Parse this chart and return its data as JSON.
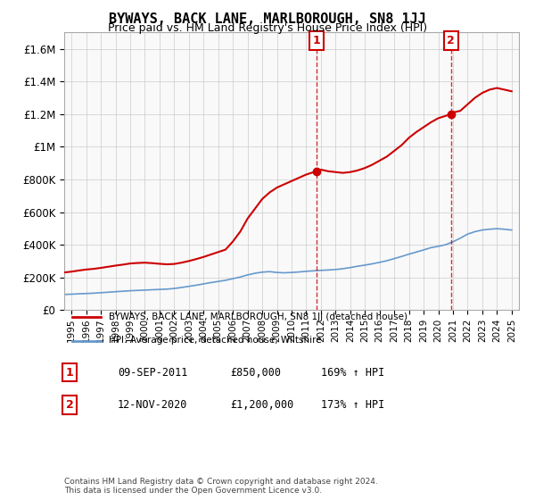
{
  "title": "BYWAYS, BACK LANE, MARLBOROUGH, SN8 1JJ",
  "subtitle": "Price paid vs. HM Land Registry's House Price Index (HPI)",
  "legend_red": "BYWAYS, BACK LANE, MARLBOROUGH, SN8 1JJ (detached house)",
  "legend_blue": "HPI: Average price, detached house, Wiltshire",
  "sale1_label": "1",
  "sale1_date": "09-SEP-2011",
  "sale1_price": "£850,000",
  "sale1_hpi": "169% ↑ HPI",
  "sale1_x": 2011.69,
  "sale1_y": 850000,
  "sale2_label": "2",
  "sale2_date": "12-NOV-2020",
  "sale2_price": "£1,200,000",
  "sale2_hpi": "173% ↑ HPI",
  "sale2_x": 2020.87,
  "sale2_y": 1200000,
  "ylim": [
    0,
    1700000
  ],
  "xlim": [
    1994.5,
    2025.5
  ],
  "yticks": [
    0,
    200000,
    400000,
    600000,
    800000,
    1000000,
    1200000,
    1400000,
    1600000
  ],
  "ytick_labels": [
    "£0",
    "£200K",
    "£400K",
    "£600K",
    "£800K",
    "£1M",
    "£1.2M",
    "£1.4M",
    "£1.6M"
  ],
  "xticks": [
    1995,
    1996,
    1997,
    1998,
    1999,
    2000,
    2001,
    2002,
    2003,
    2004,
    2005,
    2006,
    2007,
    2008,
    2009,
    2010,
    2011,
    2012,
    2013,
    2014,
    2015,
    2016,
    2017,
    2018,
    2019,
    2020,
    2021,
    2022,
    2023,
    2024,
    2025
  ],
  "background_color": "#f9f9f9",
  "grid_color": "#cccccc",
  "red_line_color": "#cc0000",
  "blue_line_color": "#6699cc",
  "marker_box_color": "#cc0000",
  "footnote": "Contains HM Land Registry data © Crown copyright and database right 2024.\nThis data is licensed under the Open Government Licence v3.0.",
  "red_x": [
    1994.5,
    1995.0,
    1995.5,
    1996.0,
    1996.5,
    1997.0,
    1997.5,
    1998.0,
    1998.5,
    1999.0,
    1999.5,
    2000.0,
    2000.5,
    2001.0,
    2001.5,
    2002.0,
    2002.5,
    2003.0,
    2003.5,
    2004.0,
    2004.5,
    2005.0,
    2005.5,
    2006.0,
    2006.5,
    2007.0,
    2007.5,
    2008.0,
    2008.5,
    2009.0,
    2009.5,
    2010.0,
    2010.5,
    2011.0,
    2011.69,
    2012.0,
    2012.5,
    2013.0,
    2013.5,
    2014.0,
    2014.5,
    2015.0,
    2015.5,
    2016.0,
    2016.5,
    2017.0,
    2017.5,
    2018.0,
    2018.5,
    2019.0,
    2019.5,
    2020.0,
    2020.87,
    2021.0,
    2021.5,
    2022.0,
    2022.5,
    2023.0,
    2023.5,
    2024.0,
    2024.5,
    2025.0
  ],
  "red_y": [
    230000,
    235000,
    242000,
    248000,
    252000,
    258000,
    265000,
    272000,
    278000,
    285000,
    288000,
    290000,
    287000,
    283000,
    280000,
    282000,
    290000,
    300000,
    312000,
    325000,
    340000,
    355000,
    370000,
    420000,
    480000,
    560000,
    620000,
    680000,
    720000,
    750000,
    770000,
    790000,
    810000,
    830000,
    850000,
    860000,
    850000,
    845000,
    840000,
    845000,
    855000,
    870000,
    890000,
    915000,
    940000,
    975000,
    1010000,
    1055000,
    1090000,
    1120000,
    1150000,
    1175000,
    1200000,
    1210000,
    1220000,
    1260000,
    1300000,
    1330000,
    1350000,
    1360000,
    1350000,
    1340000
  ],
  "blue_x": [
    1994.5,
    1995.0,
    1995.5,
    1996.0,
    1996.5,
    1997.0,
    1997.5,
    1998.0,
    1998.5,
    1999.0,
    1999.5,
    2000.0,
    2000.5,
    2001.0,
    2001.5,
    2002.0,
    2002.5,
    2003.0,
    2003.5,
    2004.0,
    2004.5,
    2005.0,
    2005.5,
    2006.0,
    2006.5,
    2007.0,
    2007.5,
    2008.0,
    2008.5,
    2009.0,
    2009.5,
    2010.0,
    2010.5,
    2011.0,
    2011.5,
    2012.0,
    2012.5,
    2013.0,
    2013.5,
    2014.0,
    2014.5,
    2015.0,
    2015.5,
    2016.0,
    2016.5,
    2017.0,
    2017.5,
    2018.0,
    2018.5,
    2019.0,
    2019.5,
    2020.0,
    2020.5,
    2021.0,
    2021.5,
    2022.0,
    2022.5,
    2023.0,
    2023.5,
    2024.0,
    2024.5,
    2025.0
  ],
  "blue_y": [
    95000,
    97000,
    99000,
    101000,
    103000,
    106000,
    109000,
    112000,
    115000,
    118000,
    120000,
    122000,
    124000,
    126000,
    128000,
    132000,
    138000,
    145000,
    152000,
    160000,
    168000,
    175000,
    182000,
    192000,
    202000,
    215000,
    225000,
    232000,
    235000,
    230000,
    228000,
    230000,
    233000,
    237000,
    240000,
    243000,
    245000,
    248000,
    253000,
    260000,
    268000,
    275000,
    283000,
    292000,
    302000,
    315000,
    328000,
    342000,
    355000,
    368000,
    382000,
    390000,
    400000,
    418000,
    440000,
    465000,
    480000,
    490000,
    495000,
    498000,
    495000,
    490000
  ]
}
